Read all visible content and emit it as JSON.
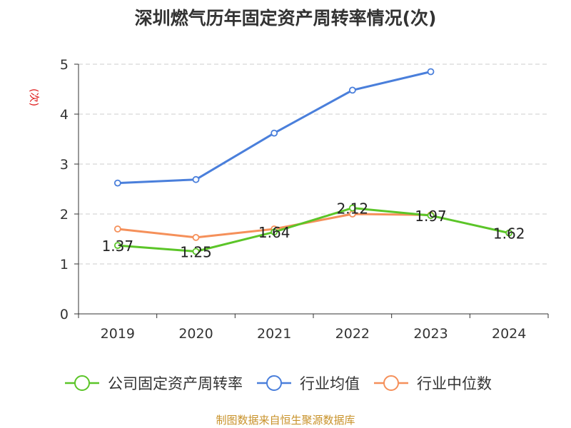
{
  "chart_data": {
    "type": "line",
    "title": "深圳燃气历年固定资产周转率情况(次)",
    "ylabel": "(次)",
    "xlabel": "",
    "categories": [
      "2019",
      "2020",
      "2021",
      "2022",
      "2023",
      "2024"
    ],
    "ylim": [
      0,
      5
    ],
    "yticks": [
      "0",
      "1",
      "2",
      "3",
      "4",
      "5"
    ],
    "grid": true,
    "legend_position": "bottom",
    "series": [
      {
        "name": "公司固定资产周转率",
        "color": "#5bc528",
        "values": [
          1.37,
          1.25,
          1.64,
          2.12,
          1.97,
          1.62
        ],
        "labels": [
          "1.37",
          "1.25",
          "1.64",
          "2.12",
          "1.97",
          "1.62"
        ]
      },
      {
        "name": "行业均值",
        "color": "#4a7fdb",
        "values": [
          2.62,
          2.69,
          3.62,
          4.48,
          4.85,
          null
        ]
      },
      {
        "name": "行业中位数",
        "color": "#f5905a",
        "values": [
          1.7,
          1.53,
          1.7,
          2.0,
          1.98,
          null
        ]
      }
    ]
  },
  "source": "制图数据来自恒生聚源数据库"
}
